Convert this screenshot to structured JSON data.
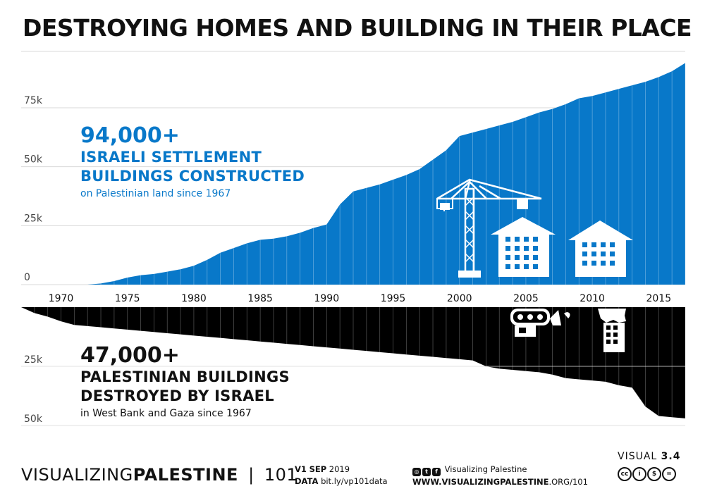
{
  "title": "DESTROYING HOMES AND BUILDING IN THEIR PLACE",
  "top_callout": {
    "number": "94,000+",
    "line1": "ISRAELI SETTLEMENT",
    "line2": "BUILDINGS CONSTRUCTED",
    "sub": "on Palestinian land since 1967"
  },
  "bottom_callout": {
    "number": "47,000+",
    "line1": "PALESTINIAN BUILDINGS",
    "line2": "DESTROYED BY ISRAEL",
    "sub": "in West Bank and Gaza since 1967"
  },
  "footer": {
    "brand_light": "VISUALIZING",
    "brand_bold": "PALESTINE",
    "brand_sep": "|",
    "brand_num": "101",
    "version_bold": "V1",
    "version_date_bold": "SEP",
    "version_year": "2019",
    "data_label": "DATA",
    "data_url": "bit.ly/vp101data",
    "social_name": "Visualizing Palestine",
    "site_bold": "WWW.VISUALIZINGPALESTINE",
    "site_rest": ".ORG/101",
    "visual_label": "VISUAL",
    "visual_num": "3.4",
    "cc_icons": [
      "cc",
      "by",
      "nc",
      "nd"
    ]
  },
  "colors": {
    "blue": "#0878c9",
    "black": "#000000",
    "gridline": "#d9d9d9"
  },
  "icons": [
    "crane-icon",
    "building-icon",
    "building-icon",
    "bulldozer-icon",
    "demolished-building-icon"
  ],
  "chart_data": [
    {
      "type": "area",
      "name": "Israeli settlement buildings constructed (cumulative)",
      "color": "#0878c9",
      "x": [
        1967,
        1968,
        1969,
        1970,
        1971,
        1972,
        1973,
        1974,
        1975,
        1976,
        1977,
        1978,
        1979,
        1980,
        1981,
        1982,
        1983,
        1984,
        1985,
        1986,
        1987,
        1988,
        1989,
        1990,
        1991,
        1992,
        1993,
        1994,
        1995,
        1996,
        1997,
        1998,
        1999,
        2000,
        2001,
        2002,
        2003,
        2004,
        2005,
        2006,
        2007,
        2008,
        2009,
        2010,
        2011,
        2012,
        2013,
        2014,
        2015,
        2016,
        2017
      ],
      "y": [
        0,
        0,
        0,
        0,
        0,
        0,
        500,
        1500,
        3000,
        4000,
        4500,
        5500,
        6500,
        8000,
        10500,
        13500,
        15500,
        17500,
        19000,
        19500,
        20500,
        22000,
        24000,
        25500,
        34000,
        39500,
        41000,
        42500,
        44500,
        46500,
        49000,
        53000,
        57000,
        63000,
        64500,
        66000,
        67500,
        69000,
        71000,
        73000,
        74500,
        76500,
        79000,
        80000,
        81500,
        83000,
        84500,
        86000,
        88000,
        90500,
        94000
      ],
      "xlim": [
        1967,
        2017
      ],
      "ylim": [
        0,
        95000
      ],
      "yticks": [
        0,
        25000,
        50000,
        75000
      ],
      "ytick_labels": [
        "0",
        "25k",
        "50k",
        "75k"
      ],
      "xticks": [
        1970,
        1975,
        1980,
        1985,
        1990,
        1995,
        2000,
        2005,
        2010,
        2015
      ],
      "xtick_labels": [
        "1970",
        "1975",
        "1980",
        "1985",
        "1990",
        "1995",
        "2000",
        "2005",
        "2010",
        "2015"
      ],
      "grid": true
    },
    {
      "type": "area",
      "name": "Palestinian buildings destroyed by Israel (cumulative, drawn downward)",
      "color": "#000000",
      "x": [
        1967,
        1968,
        1969,
        1970,
        1971,
        1972,
        1973,
        1974,
        1975,
        1976,
        1977,
        1978,
        1979,
        1980,
        1981,
        1982,
        1983,
        1984,
        1985,
        1986,
        1987,
        1988,
        1989,
        1990,
        1991,
        1992,
        1993,
        1994,
        1995,
        1996,
        1997,
        1998,
        1999,
        2000,
        2001,
        2002,
        2003,
        2004,
        2005,
        2006,
        2007,
        2008,
        2009,
        2010,
        2011,
        2012,
        2013,
        2014,
        2015,
        2016,
        2017
      ],
      "y": [
        0,
        2500,
        4000,
        6000,
        7500,
        8000,
        8500,
        9000,
        9500,
        10000,
        10500,
        11000,
        11500,
        12000,
        12500,
        13000,
        13500,
        14000,
        14500,
        15000,
        15500,
        16000,
        16500,
        17000,
        17500,
        18000,
        18500,
        19000,
        19500,
        20000,
        20500,
        21000,
        21500,
        22000,
        22500,
        25000,
        26000,
        26500,
        27000,
        27500,
        28500,
        30000,
        30500,
        31000,
        31500,
        33000,
        34000,
        42000,
        46000,
        46500,
        47000
      ],
      "xlim": [
        1967,
        2017
      ],
      "ylim": [
        0,
        50000
      ],
      "yticks": [
        25000,
        50000
      ],
      "ytick_labels": [
        "25k",
        "50k"
      ],
      "grid": true
    }
  ]
}
